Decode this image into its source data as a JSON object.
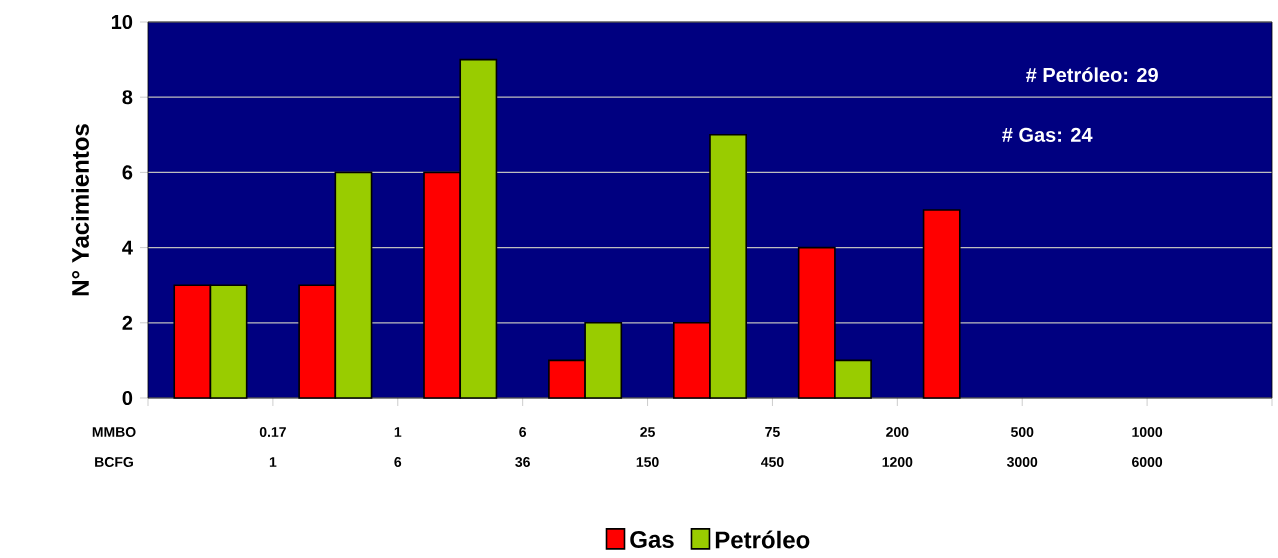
{
  "chart_data": {
    "type": "bar",
    "ylabel": "N° Yacimientos",
    "categories": [
      null,
      null,
      null,
      null,
      null,
      null,
      null,
      null,
      null
    ],
    "ylim": [
      0,
      10
    ],
    "yticks": [
      0,
      2,
      4,
      6,
      8,
      10
    ],
    "grid": "y",
    "legend": "bottom",
    "series": [
      {
        "name": "Gas",
        "color": "#ff0000",
        "values": [
          3,
          3,
          6,
          1,
          2,
          4,
          5,
          null,
          null
        ]
      },
      {
        "name": "Petróleo",
        "color": "#99cc00",
        "values": [
          3,
          6,
          9,
          2,
          7,
          1,
          null,
          null,
          null
        ]
      }
    ],
    "annotations": [
      "# Petróleo: 29",
      "# Gas: 24",
      "MMBO",
      "0.17",
      "1",
      "6",
      "25",
      "75",
      "200",
      "500",
      "1000",
      "BCFG",
      "1",
      "6",
      "36",
      "150",
      "450",
      "1200",
      "3000",
      "6000"
    ]
  }
}
